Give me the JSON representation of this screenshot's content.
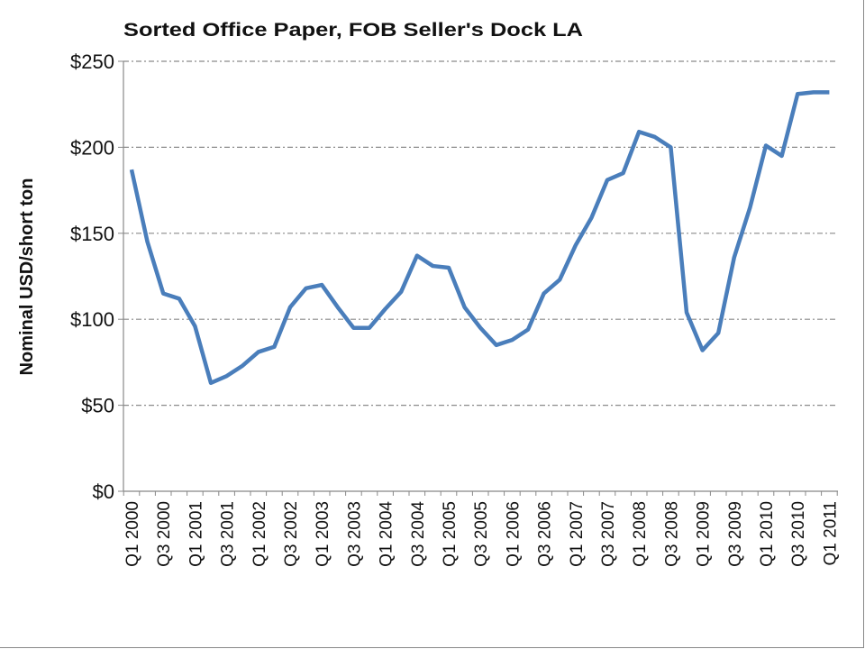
{
  "chart_data": {
    "type": "line",
    "title": "Sorted Office Paper, FOB Seller's Dock LA",
    "xlabel": "",
    "ylabel": "Nominal USD/short ton",
    "ylim": [
      0,
      250
    ],
    "yticks": [
      "$0",
      "$50",
      "$100",
      "$150",
      "$200",
      "$250"
    ],
    "ytick_values": [
      0,
      50,
      100,
      150,
      200,
      250
    ],
    "grid": true,
    "x_labels": [
      "Q1 2000",
      "Q3 2000",
      "Q1 2001",
      "Q3 2001",
      "Q1 2002",
      "Q3 2002",
      "Q1 2003",
      "Q3 2003",
      "Q1 2004",
      "Q3 2004",
      "Q1 2005",
      "Q3 2005",
      "Q1 2006",
      "Q3 2006",
      "Q1 2007",
      "Q3 2007",
      "Q1 2008",
      "Q3 2008",
      "Q1 2009",
      "Q3 2009",
      "Q1 2010",
      "Q3 2010",
      "Q1 2011"
    ],
    "series": [
      {
        "name": "Sorted Office Paper",
        "color": "#4a7ebb",
        "values": [
          187,
          145,
          115,
          112,
          96,
          63,
          67,
          73,
          81,
          84,
          107,
          118,
          120,
          107,
          95,
          95,
          106,
          116,
          137,
          131,
          130,
          107,
          95,
          85,
          88,
          94,
          115,
          123,
          143,
          159,
          181,
          185,
          209,
          206,
          200,
          104,
          82,
          92,
          136,
          165,
          201,
          195,
          231,
          232,
          232
        ]
      }
    ]
  }
}
